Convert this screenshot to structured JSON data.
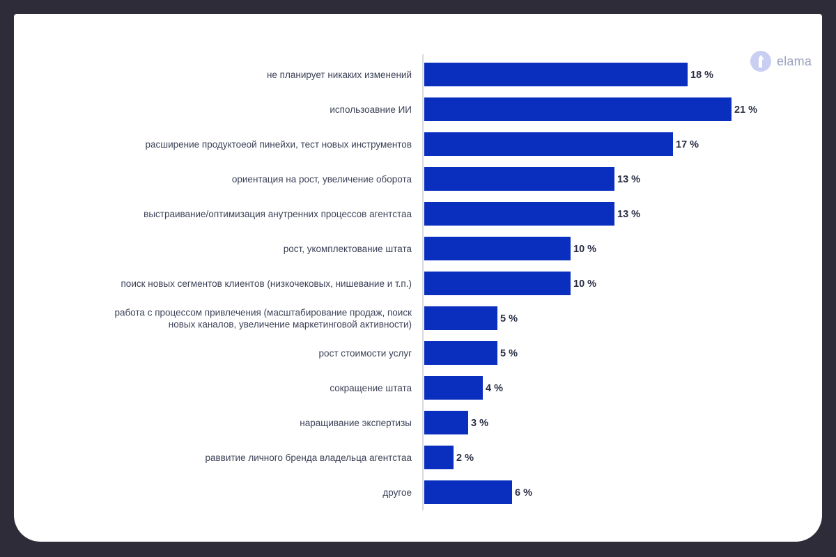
{
  "brand": {
    "name": "elama",
    "mark_color": "#c9cff3",
    "text_color": "#9aa3c0"
  },
  "colors": {
    "bar": "#0a2fbf",
    "card_background": "#ffffff",
    "frame_background": "#2f2c3a"
  },
  "chart_data": {
    "type": "bar",
    "orientation": "horizontal",
    "title": "",
    "xlabel": "",
    "ylabel": "",
    "xlim": [
      0,
      21
    ],
    "grid": false,
    "value_suffix": " %",
    "categories": [
      [
        "не планирует никаких изменений"
      ],
      [
        "использоавние ИИ"
      ],
      [
        "расширение продуктоеой пинейхи, тест новых инструментов"
      ],
      [
        "ориентация на рост, увеличение оборота"
      ],
      [
        "выстраивание/оптимизация анутренних процессов агентстаа"
      ],
      [
        "рост, укомплектование штата"
      ],
      [
        "поиск новых сегментов клиентов (низкочековых, нишевание и т.п.)"
      ],
      [
        "работа с процессом привлечения (масштабирование продаж, поиск",
        "новых каналов, увеличение маркетинговой активности)"
      ],
      [
        "рост стоимости услуг"
      ],
      [
        "сокращение штата"
      ],
      [
        "наращивание экспертизы"
      ],
      [
        "раввитие личного бренда владельца агентстаа"
      ],
      [
        "другое"
      ]
    ],
    "values": [
      18,
      21,
      17,
      13,
      13,
      10,
      10,
      5,
      5,
      4,
      3,
      2,
      6
    ],
    "value_labels": [
      "18 %",
      "21 %",
      "17 %",
      "13 %",
      "13 %",
      "10 %",
      "10 %",
      "5 %",
      "5 %",
      "4 %",
      "3 %",
      "2 %",
      "6 %"
    ]
  }
}
